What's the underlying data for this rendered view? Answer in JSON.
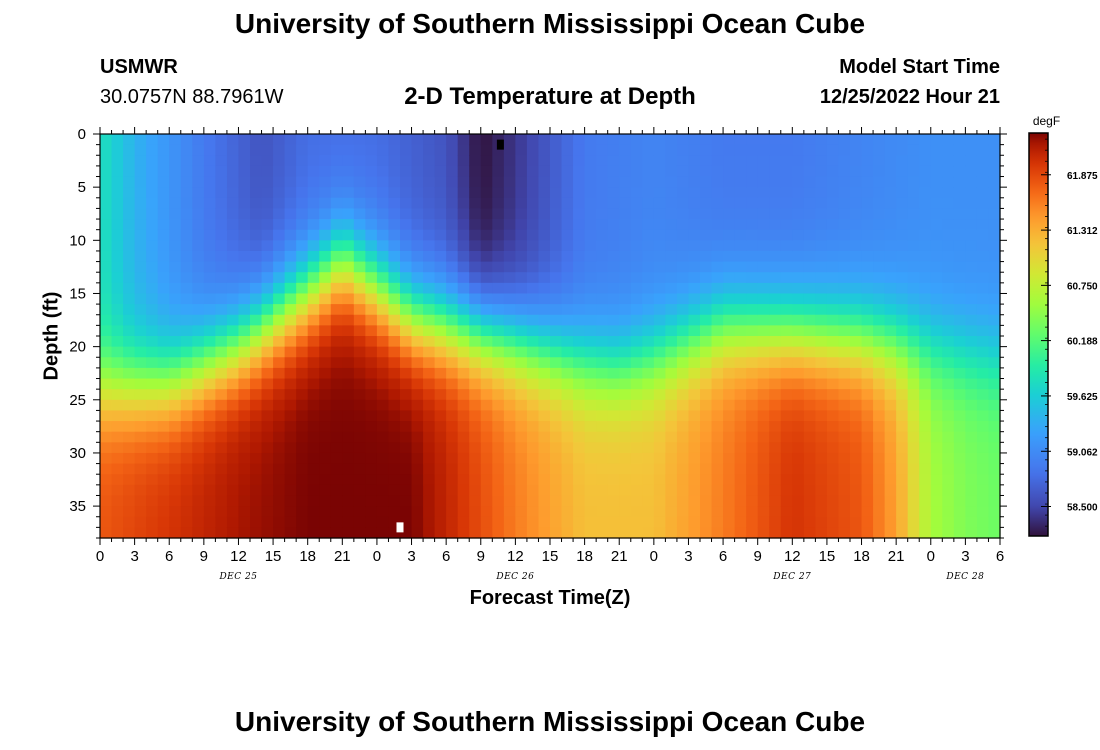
{
  "header": {
    "title": "University of Southern Mississippi Ocean Cube",
    "station_id": "USMWR",
    "station_coords": "30.0757N  88.7961W",
    "plot_title": "2-D Temperature at Depth",
    "model_start_label": "Model Start Time",
    "model_start_value": "12/25/2022 Hour 21"
  },
  "footer": {
    "title": "University of Southern Mississippi Ocean Cube"
  },
  "chart_data": {
    "type": "heatmap",
    "title": "2-D Temperature at Depth",
    "xlabel": "Forecast Time(Z)",
    "ylabel": "Depth (ft)",
    "x_start": "2022-12-25 00Z",
    "x_tick_labels": [
      "0",
      "3",
      "6",
      "9",
      "12",
      "15",
      "18",
      "21",
      "0",
      "3",
      "6",
      "9",
      "12",
      "15",
      "18",
      "21",
      "0",
      "3",
      "6",
      "9",
      "12",
      "15",
      "18",
      "21",
      "0",
      "3",
      "6"
    ],
    "x_date_labels": [
      {
        "label": "DEC 25",
        "hour": 12
      },
      {
        "label": "DEC 26",
        "hour": 36
      },
      {
        "label": "DEC 27",
        "hour": 60
      },
      {
        "label": "DEC 28",
        "hour": 75
      }
    ],
    "x_range_hours": [
      0,
      78
    ],
    "y_ticks": [
      0,
      5,
      10,
      15,
      20,
      25,
      30,
      35
    ],
    "y_range_ft": [
      0,
      38
    ],
    "y_inverted": true,
    "colorbar": {
      "unit": "degF",
      "labels": [
        "61.875",
        "61.312",
        "60.750",
        "60.188",
        "59.625",
        "59.062",
        "58.500"
      ],
      "range": [
        58.2,
        62.3
      ]
    },
    "markers": [
      {
        "hour": 34.7,
        "depth": 1,
        "color": "#000000"
      },
      {
        "hour": 26,
        "depth": 37,
        "color": "#ffffff"
      }
    ],
    "surface_temps_degF": [
      [
        0,
        59.8
      ],
      [
        3,
        59.4
      ],
      [
        9,
        58.9
      ],
      [
        14,
        58.6
      ],
      [
        18,
        58.8
      ],
      [
        24,
        58.8
      ],
      [
        30,
        58.6
      ],
      [
        33,
        58.2
      ],
      [
        36,
        58.4
      ],
      [
        42,
        58.9
      ],
      [
        48,
        59.0
      ],
      [
        54,
        58.9
      ],
      [
        60,
        58.9
      ],
      [
        66,
        59.0
      ],
      [
        72,
        59.1
      ],
      [
        78,
        59.1
      ]
    ],
    "bottom_temps_degF": [
      [
        0,
        61.8
      ],
      [
        6,
        62.0
      ],
      [
        12,
        62.2
      ],
      [
        18,
        62.3
      ],
      [
        24,
        62.3
      ],
      [
        27,
        62.3
      ],
      [
        30,
        62.1
      ],
      [
        36,
        61.6
      ],
      [
        42,
        61.2
      ],
      [
        48,
        61.2
      ],
      [
        54,
        61.6
      ],
      [
        60,
        62.0
      ],
      [
        66,
        61.8
      ],
      [
        69,
        61.4
      ],
      [
        72,
        60.6
      ],
      [
        75,
        60.4
      ],
      [
        78,
        60.3
      ]
    ],
    "thermocline_depth_ft": [
      [
        0,
        24
      ],
      [
        6,
        23.5
      ],
      [
        12,
        20
      ],
      [
        18,
        15
      ],
      [
        21,
        12
      ],
      [
        24,
        14.5
      ],
      [
        27,
        17.3
      ],
      [
        30,
        18
      ],
      [
        36,
        19.5
      ],
      [
        42,
        21.5
      ],
      [
        45,
        22
      ],
      [
        48,
        21
      ],
      [
        54,
        18
      ],
      [
        60,
        18.5
      ],
      [
        66,
        19
      ],
      [
        72,
        20
      ],
      [
        78,
        21
      ]
    ]
  }
}
